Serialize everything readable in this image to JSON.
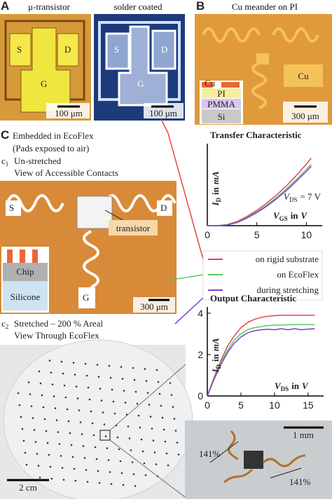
{
  "panel_a": {
    "label": "A",
    "left_title": "μ-transistor",
    "right_title": "solder coated",
    "left_pads": [
      "S",
      "D",
      "G"
    ],
    "right_pads": [
      "S",
      "D",
      "G"
    ],
    "left_scale": "100 μm",
    "right_scale": "100 μm"
  },
  "panel_b": {
    "label": "B",
    "title": "Cu meander on PI",
    "material": "Cu",
    "stack": [
      "Cu",
      "PI",
      "PMMA",
      "Si"
    ],
    "scale": "300 μm"
  },
  "panel_c": {
    "label": "C",
    "line1": "Embedded in EcoFlex",
    "line2": "(Pads exposed to air)",
    "c1": {
      "letter": "c",
      "index": "1",
      "line1": "Un-stretched",
      "line2": "View of Accessible Contacts"
    },
    "c1_photo": {
      "pads": [
        "S",
        "D",
        "G"
      ],
      "callout": "transistor",
      "chip": "Chip",
      "substrate": "Silicone",
      "scale": "300 μm"
    },
    "c2": {
      "letter": "c",
      "index": "2",
      "line1": "Stretched – 200 % Areal",
      "line2": "View Through EcoFlex"
    },
    "c2_photo": {
      "scale": "2 cm"
    },
    "zoom_photo": {
      "scale": "1 mm",
      "strain_left": "141%",
      "strain_right": "141%"
    }
  },
  "legend": {
    "entries": [
      "on rigid substrate",
      "on EcoFlex",
      "during stretching"
    ]
  },
  "chart_data": [
    {
      "type": "line",
      "title": "Transfer Characteristic",
      "y_label": {
        "symbol": "I",
        "subscript": "D",
        "word": "in",
        "unit": "mA"
      },
      "x_label": {
        "symbol": "V",
        "subscript": "GS",
        "word": "in",
        "unit": "V"
      },
      "annotation": {
        "symbol": "V",
        "subscript": "DS",
        "text": "= 7 V"
      },
      "x": [
        0,
        1,
        2,
        3,
        4,
        5,
        6,
        7,
        8,
        9,
        10,
        10.5
      ],
      "series": [
        {
          "color": "#e8434b",
          "values": [
            0,
            0,
            0.05,
            0.2,
            0.45,
            0.75,
            1.1,
            1.5,
            1.95,
            2.45,
            3.0,
            3.3
          ]
        },
        {
          "color": "#5cc95c",
          "values": [
            0,
            0,
            0.04,
            0.17,
            0.4,
            0.68,
            1.0,
            1.38,
            1.8,
            2.25,
            2.75,
            3.0
          ]
        },
        {
          "color": "#7a3fd1",
          "values": [
            0,
            0,
            0.03,
            0.15,
            0.37,
            0.64,
            0.95,
            1.32,
            1.72,
            2.17,
            2.65,
            2.9
          ]
        }
      ],
      "xlim": [
        0,
        11.6
      ],
      "ylim": [
        0,
        4
      ],
      "xticks": [
        0,
        5,
        10
      ]
    },
    {
      "type": "line",
      "title": "Output Characteristic",
      "y_label": {
        "symbol": "I",
        "subscript": "D",
        "word": "in",
        "unit": "mA"
      },
      "x_label": {
        "symbol": "V",
        "subscript": "DS",
        "word": "in",
        "unit": "V"
      },
      "x": [
        0,
        1,
        2,
        3,
        4,
        5,
        6,
        7,
        8,
        9,
        10,
        11,
        12,
        13,
        14,
        15,
        16
      ],
      "series": [
        {
          "color": "#e8434b",
          "values": [
            0,
            0.9,
            1.7,
            2.4,
            2.9,
            3.3,
            3.55,
            3.7,
            3.8,
            3.85,
            3.88,
            3.9,
            3.9,
            3.9,
            3.9,
            3.9,
            3.9
          ]
        },
        {
          "color": "#5cc95c",
          "values": [
            0,
            0.85,
            1.6,
            2.2,
            2.7,
            3.0,
            3.2,
            3.3,
            3.35,
            3.4,
            3.42,
            3.43,
            3.44,
            3.45,
            3.45,
            3.45,
            3.45
          ]
        },
        {
          "color": "#7a3fd1",
          "values": [
            0,
            0.8,
            1.5,
            2.1,
            2.55,
            2.85,
            3.05,
            3.15,
            3.2,
            3.22,
            3.2,
            3.25,
            3.2,
            3.25,
            3.2,
            3.23,
            3.25
          ]
        }
      ],
      "xlim": [
        0,
        17.3
      ],
      "ylim": [
        0,
        4.3
      ],
      "xticks": [
        0,
        5,
        10,
        15
      ],
      "yticks": [
        0,
        2,
        4
      ]
    }
  ]
}
